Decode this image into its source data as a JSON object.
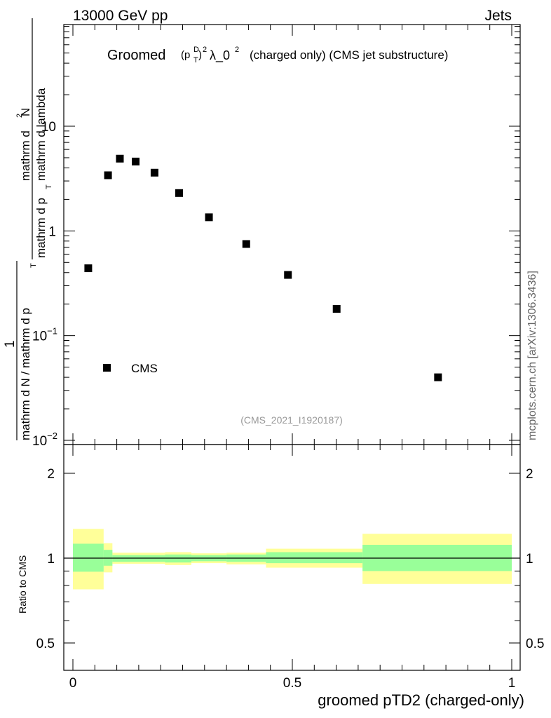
{
  "header": {
    "energy_label": "13000 GeV pp",
    "process_label": "Jets"
  },
  "main_plot": {
    "title_prefix": "Groomed",
    "title_p": "(p",
    "title_sup_d": "D",
    "title_sub_t": "T",
    "title_close": ")",
    "title_sup_2": "2",
    "title_lambda": "λ_0",
    "title_sup_2b": "2",
    "title_suffix": "(charged only) (CMS jet substructure)",
    "ylabel_top_a": "mathrm d",
    "ylabel_top_sup": "2",
    "ylabel_top_b": "N",
    "ylabel_bottom_a": "mathrm d p",
    "ylabel_bottom_sub": "T",
    "ylabel_bottom_b": "mathrm d lambda",
    "ylabel_lower_num": "1",
    "ylabel_lower_den_a": "mathrm d N / mathrm d p",
    "ylabel_lower_den_sub": "T",
    "analysis_id": "(CMS_2021_I1920187)",
    "legend": {
      "marker_label": "CMS"
    },
    "y_tick_labels": [
      {
        "value": 10,
        "base": "10",
        "exp": ""
      },
      {
        "value": 1,
        "base": "1",
        "exp": ""
      },
      {
        "value": 0.1,
        "base": "10",
        "exp": "−1"
      },
      {
        "value": 0.01,
        "base": "10",
        "exp": "−2"
      }
    ]
  },
  "ratio_plot": {
    "ylabel": "Ratio to CMS",
    "y_ticks": [
      {
        "value": 0.5,
        "label": "0.5"
      },
      {
        "value": 1,
        "label": "1"
      },
      {
        "value": 2,
        "label": "2"
      }
    ]
  },
  "x_axis": {
    "label": "groomed pTD2 (charged-only)",
    "ticks": [
      {
        "value": 0,
        "label": "0"
      },
      {
        "value": 0.5,
        "label": "0.5"
      },
      {
        "value": 1,
        "label": "1"
      }
    ]
  },
  "side_label": "mcplots.cern.ch [arXiv:1306.3436]",
  "chart_data": [
    {
      "type": "scatter",
      "panel": "main",
      "title": "Groomed (p_T^D)^2 λ_0^2 (charged only) (CMS jet substructure)",
      "xlabel": "groomed pTD2 (charged-only)",
      "ylabel": "1 / (mathrm d N / mathrm d p_T) · mathrm d^2N / (mathrm d p_T mathrm d lambda)",
      "y_scale": "log",
      "xlim": [
        -0.02,
        1.02
      ],
      "ylim": [
        0.009,
        100
      ],
      "legend_position": "bottom-left",
      "series": [
        {
          "name": "CMS",
          "color": "#000000",
          "marker": "square",
          "points": [
            {
              "x": 0.035,
              "y": 0.44
            },
            {
              "x": 0.08,
              "y": 3.4
            },
            {
              "x": 0.107,
              "y": 4.9
            },
            {
              "x": 0.143,
              "y": 4.6
            },
            {
              "x": 0.186,
              "y": 3.6
            },
            {
              "x": 0.242,
              "y": 2.3
            },
            {
              "x": 0.31,
              "y": 1.35
            },
            {
              "x": 0.395,
              "y": 0.75
            },
            {
              "x": 0.49,
              "y": 0.38
            },
            {
              "x": 0.601,
              "y": 0.18
            },
            {
              "x": 0.832,
              "y": 0.04
            }
          ]
        }
      ]
    },
    {
      "type": "area",
      "panel": "ratio",
      "ylabel": "Ratio to CMS",
      "y_scale": "log",
      "ylim": [
        0.4,
        2.4
      ],
      "reference_line": 1,
      "bands": [
        {
          "name": "total uncertainty",
          "color": "#ffff99",
          "bins": [
            {
              "x0": 0.0,
              "x1": 0.07,
              "lo": 0.775,
              "hi": 1.27
            },
            {
              "x0": 0.07,
              "x1": 0.09,
              "lo": 0.89,
              "hi": 1.13
            },
            {
              "x0": 0.09,
              "x1": 0.21,
              "lo": 0.955,
              "hi": 1.045
            },
            {
              "x0": 0.21,
              "x1": 0.27,
              "lo": 0.945,
              "hi": 1.05
            },
            {
              "x0": 0.27,
              "x1": 0.35,
              "lo": 0.96,
              "hi": 1.04
            },
            {
              "x0": 0.35,
              "x1": 0.44,
              "lo": 0.95,
              "hi": 1.045
            },
            {
              "x0": 0.44,
              "x1": 0.66,
              "lo": 0.925,
              "hi": 1.08
            },
            {
              "x0": 0.66,
              "x1": 1.0,
              "lo": 0.81,
              "hi": 1.22
            }
          ]
        },
        {
          "name": "statistical uncertainty",
          "color": "#99ff99",
          "bins": [
            {
              "x0": 0.0,
              "x1": 0.07,
              "lo": 0.895,
              "hi": 1.125
            },
            {
              "x0": 0.07,
              "x1": 0.09,
              "lo": 0.94,
              "hi": 1.07
            },
            {
              "x0": 0.09,
              "x1": 0.21,
              "lo": 0.97,
              "hi": 1.025
            },
            {
              "x0": 0.21,
              "x1": 0.27,
              "lo": 0.965,
              "hi": 1.03
            },
            {
              "x0": 0.27,
              "x1": 0.35,
              "lo": 0.975,
              "hi": 1.025
            },
            {
              "x0": 0.35,
              "x1": 0.44,
              "lo": 0.97,
              "hi": 1.03
            },
            {
              "x0": 0.44,
              "x1": 0.66,
              "lo": 0.96,
              "hi": 1.05
            },
            {
              "x0": 0.66,
              "x1": 1.0,
              "lo": 0.9,
              "hi": 1.115
            }
          ]
        }
      ]
    }
  ]
}
